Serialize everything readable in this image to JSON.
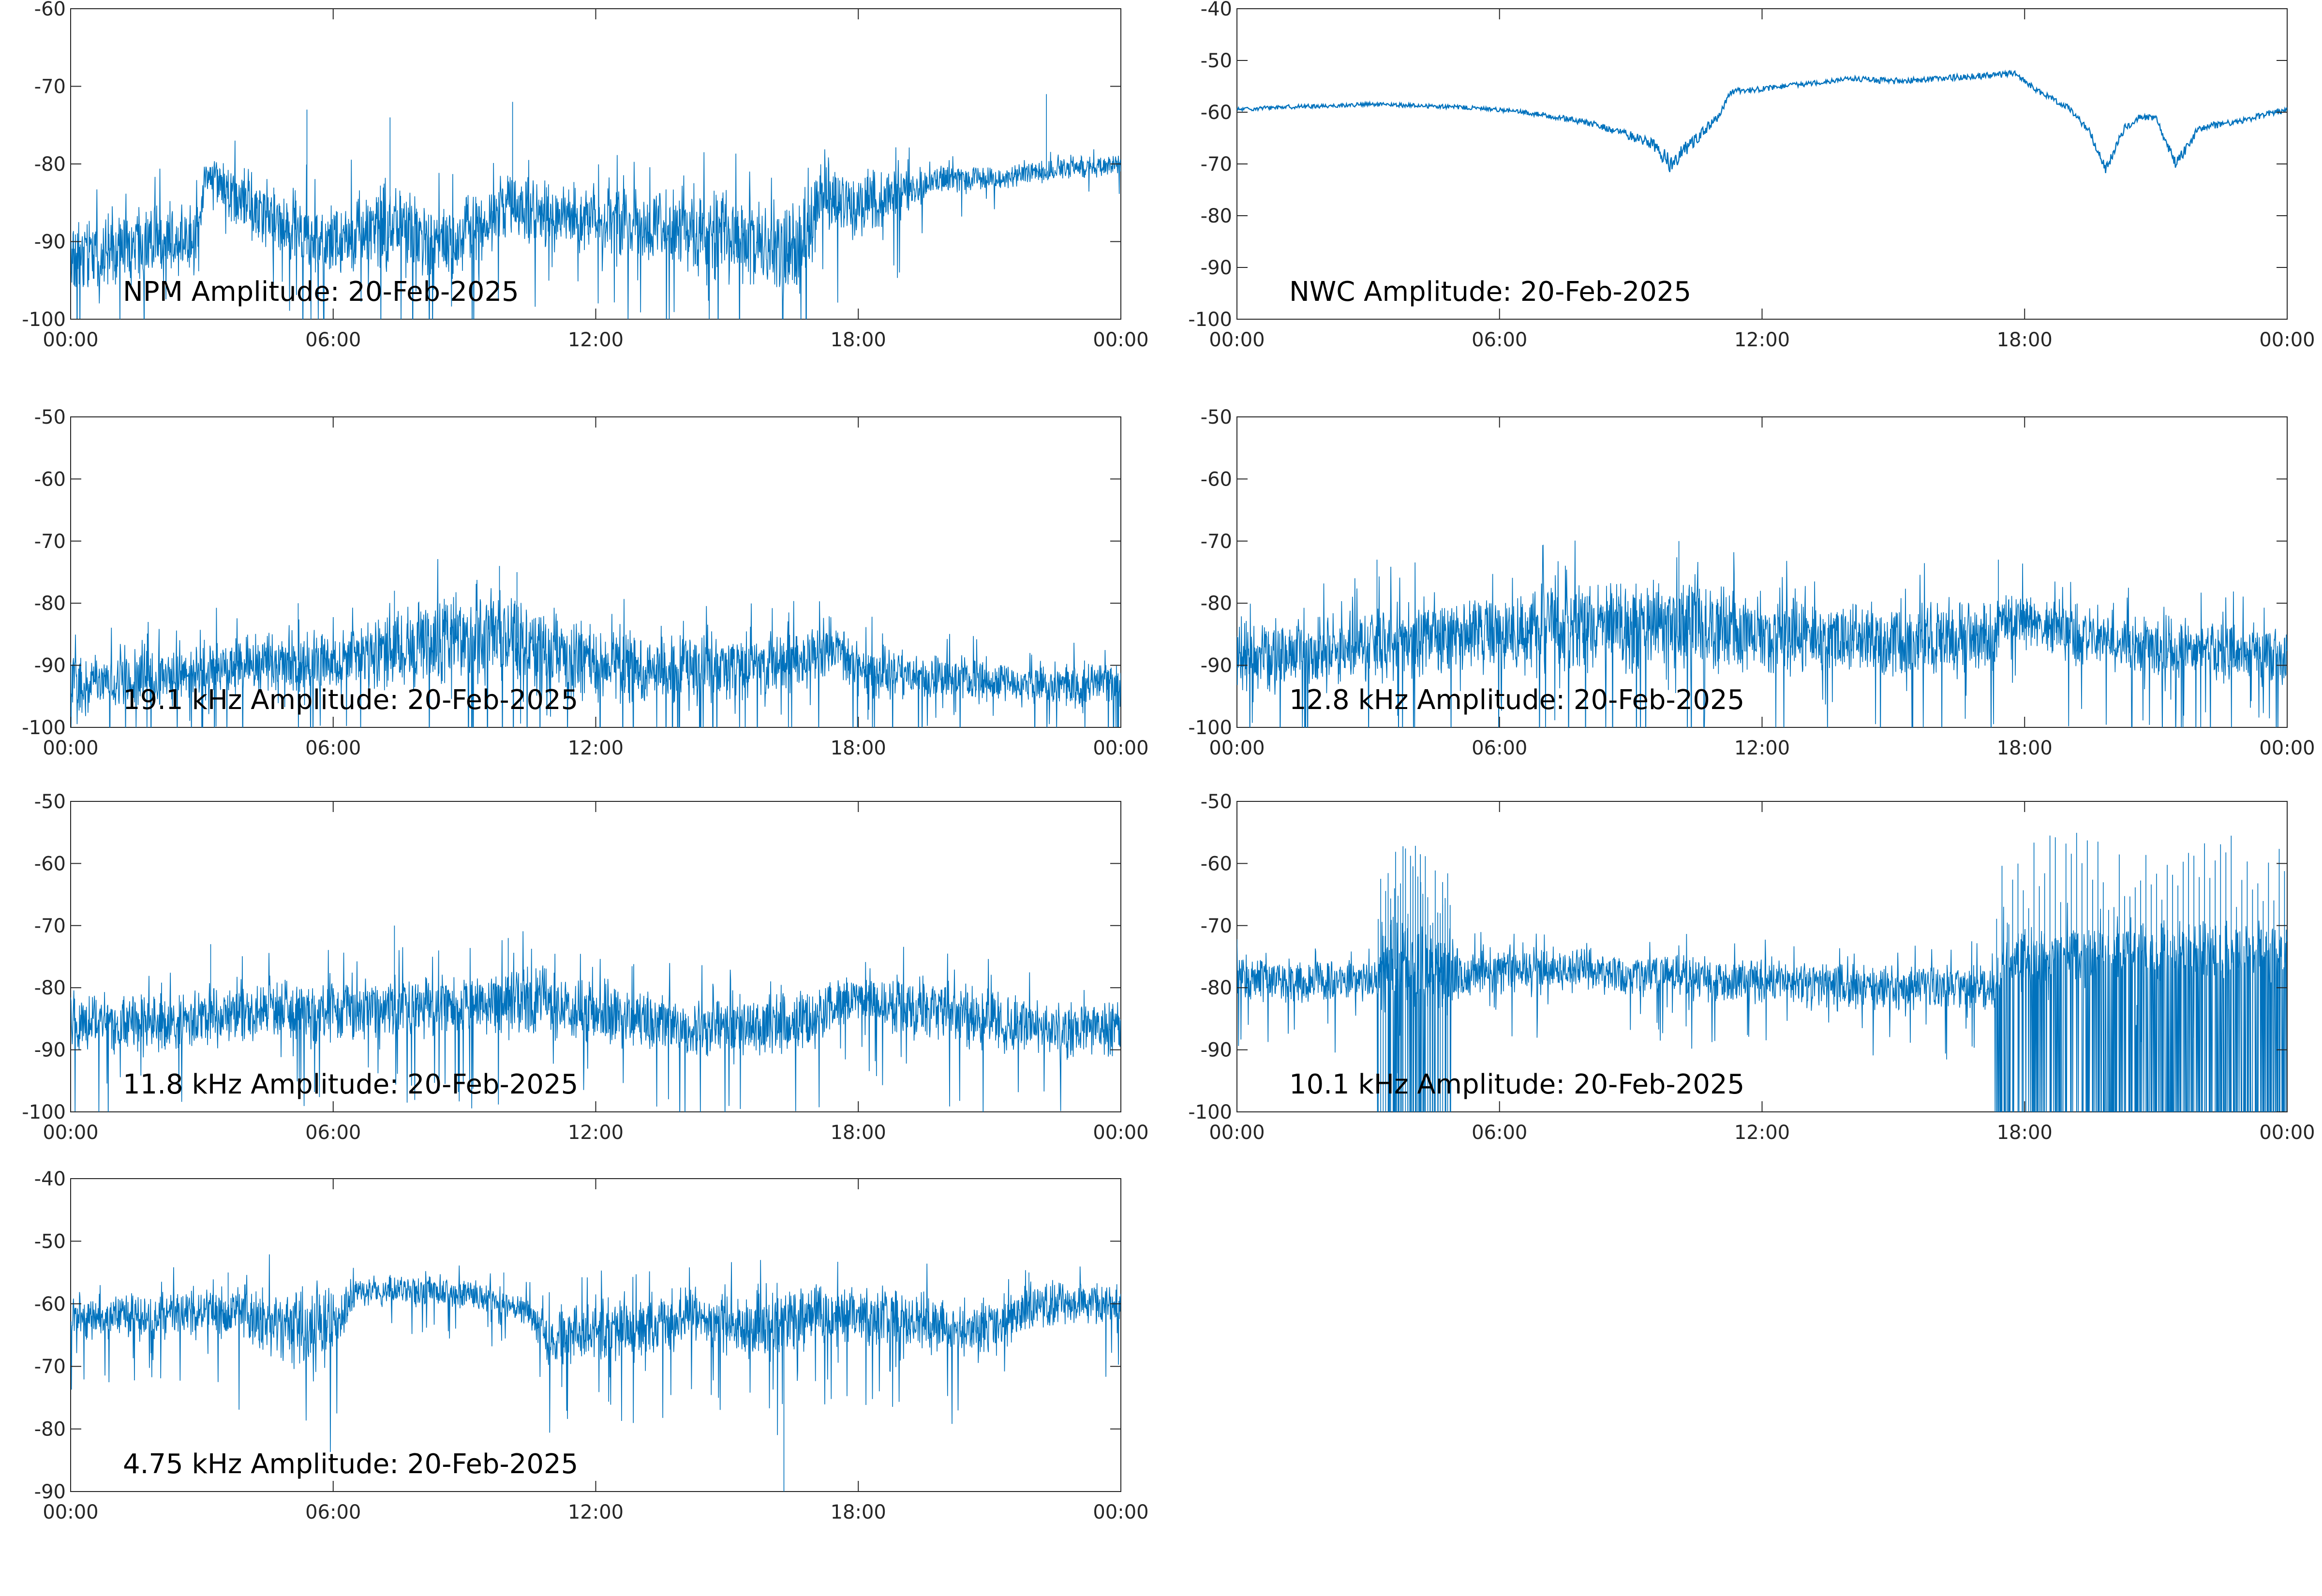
{
  "chart_data": [
    {
      "type": "line",
      "annotation": "NPM Amplitude: 20-Feb-2025",
      "x_ticks": [
        "00:00",
        "06:00",
        "12:00",
        "18:00",
        "00:00"
      ],
      "xlim": [
        "00:00",
        "24:00"
      ],
      "ylim": [
        -100,
        -60
      ],
      "y_ticks": [
        -60,
        -70,
        -80,
        -90,
        -100
      ],
      "color": "#0072BD",
      "grid": false,
      "noisy": true,
      "series": [
        {
          "x": [
            0,
            1,
            2,
            2.9,
            3.1,
            4,
            5,
            5.5,
            6.2,
            6.8,
            7.5,
            8.3,
            9,
            9.8,
            10.5,
            11.2,
            12,
            13,
            14,
            15,
            16,
            16.8,
            17.2,
            18,
            19,
            20,
            21,
            22,
            23,
            24
          ],
          "mid": [
            -92,
            -91,
            -90,
            -89,
            -81,
            -85,
            -88,
            -90,
            -90,
            -88,
            -88,
            -91,
            -89,
            -86,
            -86,
            -87,
            -87,
            -88,
            -89,
            -90,
            -91,
            -91,
            -83,
            -86,
            -84,
            -82,
            -82,
            -81,
            -80.5,
            -80
          ],
          "spread": [
            4,
            4,
            4,
            4,
            1.5,
            4,
            4,
            4,
            4,
            4,
            5,
            4,
            4,
            4,
            4,
            3.5,
            3.5,
            4,
            5,
            5,
            5,
            5,
            4,
            4,
            2.5,
            1.5,
            1.5,
            1.2,
            1.2,
            1.2
          ],
          "spikes": [
            [
              5.4,
              -73
            ],
            [
              7.3,
              -74
            ],
            [
              10.1,
              -72
            ],
            [
              22.3,
              -71
            ]
          ]
        }
      ]
    },
    {
      "type": "line",
      "annotation": "NWC Amplitude: 20-Feb-2025",
      "x_ticks": [
        "00:00",
        "06:00",
        "12:00",
        "18:00",
        "00:00"
      ],
      "xlim": [
        "00:00",
        "24:00"
      ],
      "ylim": [
        -100,
        -40
      ],
      "y_ticks": [
        -40,
        -50,
        -60,
        -70,
        -80,
        -90,
        -100
      ],
      "color": "#0072BD",
      "grid": false,
      "noisy": false,
      "series": [
        {
          "x": [
            0,
            1,
            2,
            3,
            4,
            5,
            6,
            7,
            8,
            8.8,
            9.5,
            9.9,
            10.5,
            11,
            11.3,
            12,
            13,
            14,
            15,
            16,
            17,
            17.8,
            18.3,
            19,
            19.5,
            19.85,
            20.3,
            20.6,
            21,
            21.45,
            22,
            23,
            24
          ],
          "mid": [
            -59.5,
            -59,
            -58.8,
            -58.5,
            -58.7,
            -59,
            -59.5,
            -60.5,
            -62,
            -64,
            -66,
            -70,
            -65,
            -61,
            -56,
            -55.5,
            -54.5,
            -53.5,
            -54,
            -53.5,
            -53,
            -52.5,
            -56,
            -59,
            -64,
            -71,
            -63,
            -61,
            -61,
            -70,
            -63,
            -61.5,
            -59.5
          ],
          "spread": [
            0.4,
            0.4,
            0.4,
            0.4,
            0.4,
            0.4,
            0.4,
            0.5,
            0.6,
            0.8,
            1.2,
            1.8,
            1.2,
            0.8,
            0.6,
            0.5,
            0.5,
            0.5,
            0.6,
            0.6,
            0.6,
            0.6,
            0.6,
            0.6,
            0.8,
            1.2,
            0.8,
            0.6,
            0.6,
            1.2,
            0.8,
            0.6,
            0.5
          ],
          "spikes": []
        }
      ]
    },
    {
      "type": "line",
      "annotation": "19.1 kHz Amplitude: 20-Feb-2025",
      "x_ticks": [
        "00:00",
        "06:00",
        "12:00",
        "18:00",
        "00:00"
      ],
      "xlim": [
        "00:00",
        "24:00"
      ],
      "ylim": [
        -100,
        -50
      ],
      "y_ticks": [
        -50,
        -60,
        -70,
        -80,
        -90,
        -100
      ],
      "color": "#0072BD",
      "grid": false,
      "noisy": true,
      "series": [
        {
          "x": [
            0,
            2,
            4,
            5,
            6,
            7,
            8,
            9,
            10,
            11,
            12,
            14,
            16,
            17,
            17.5,
            18,
            20,
            22,
            24
          ],
          "mid": [
            -93,
            -92,
            -90,
            -89,
            -90,
            -88,
            -87,
            -86,
            -85,
            -88,
            -90,
            -91,
            -90,
            -89,
            -87,
            -91,
            -92,
            -93,
            -93
          ],
          "spread": [
            4,
            4,
            4,
            4,
            4,
            5,
            6,
            6,
            6,
            6,
            5,
            5,
            4,
            4,
            3,
            4,
            3,
            3,
            3
          ],
          "spikes": [
            [
              9.8,
              -74
            ],
            [
              10.2,
              -75
            ],
            [
              7.4,
              -78
            ],
            [
              5.2,
              -80
            ]
          ]
        }
      ]
    },
    {
      "type": "line",
      "annotation": "12.8 kHz Amplitude: 20-Feb-2025",
      "x_ticks": [
        "00:00",
        "06:00",
        "12:00",
        "18:00",
        "00:00"
      ],
      "xlim": [
        "00:00",
        "24:00"
      ],
      "ylim": [
        -100,
        -50
      ],
      "y_ticks": [
        -50,
        -60,
        -70,
        -80,
        -90,
        -100
      ],
      "color": "#0072BD",
      "grid": false,
      "noisy": true,
      "series": [
        {
          "x": [
            0,
            2,
            3,
            4,
            5,
            6,
            7,
            8,
            9,
            10,
            11,
            12,
            14,
            16,
            17.3,
            17.5,
            19,
            21,
            23,
            24
          ],
          "mid": [
            -88,
            -88,
            -87,
            -86,
            -85,
            -85,
            -84,
            -84,
            -84,
            -83,
            -84,
            -85,
            -86,
            -86,
            -86,
            -82,
            -85,
            -87,
            -88,
            -89
          ],
          "spread": [
            5,
            5,
            5,
            5,
            5,
            5,
            6,
            6,
            6,
            6,
            6,
            5,
            5,
            5,
            5,
            4,
            4,
            4,
            4,
            4
          ],
          "spikes": [
            [
              10.1,
              -70
            ],
            [
              3.2,
              -73
            ],
            [
              17.4,
              -73
            ]
          ]
        }
      ]
    },
    {
      "type": "line",
      "annotation": "11.8 kHz Amplitude: 20-Feb-2025",
      "x_ticks": [
        "00:00",
        "06:00",
        "12:00",
        "18:00",
        "00:00"
      ],
      "xlim": [
        "00:00",
        "24:00"
      ],
      "ylim": [
        -100,
        -50
      ],
      "y_ticks": [
        -50,
        -60,
        -70,
        -80,
        -90,
        -100
      ],
      "color": "#0072BD",
      "grid": false,
      "noisy": true,
      "series": [
        {
          "x": [
            0,
            1,
            2,
            3,
            4,
            5,
            6,
            7,
            8,
            9,
            10,
            11,
            12,
            13,
            14,
            15,
            16,
            17,
            17.8,
            19,
            20,
            22,
            24
          ],
          "mid": [
            -85,
            -86,
            -86,
            -85,
            -84,
            -83,
            -84,
            -83,
            -83,
            -83,
            -82,
            -83,
            -84,
            -85,
            -86,
            -86,
            -86,
            -85,
            -82,
            -83,
            -84,
            -86,
            -87
          ],
          "spread": [
            4,
            4,
            4,
            4,
            4,
            4,
            4,
            4,
            4,
            4,
            5,
            5,
            4,
            4,
            4,
            4,
            4,
            4,
            3,
            4,
            4,
            4,
            4
          ],
          "spikes": [
            [
              7.4,
              -70
            ],
            [
              10,
              -72
            ],
            [
              3.2,
              -73
            ]
          ]
        }
      ]
    },
    {
      "type": "line",
      "annotation": "10.1 kHz Amplitude: 20-Feb-2025",
      "x_ticks": [
        "00:00",
        "06:00",
        "12:00",
        "18:00",
        "00:00"
      ],
      "xlim": [
        "00:00",
        "24:00"
      ],
      "ylim": [
        -100,
        -50
      ],
      "y_ticks": [
        -50,
        -60,
        -70,
        -80,
        -90,
        -100
      ],
      "color": "#0072BD",
      "grid": false,
      "noisy": true,
      "series": [
        {
          "x": [
            0,
            2,
            3.2,
            3.5,
            4.8,
            5,
            8,
            10,
            12,
            14,
            16,
            17.3,
            17.5,
            19,
            21,
            23,
            24
          ],
          "mid": [
            -78,
            -79,
            -79,
            -77,
            -77,
            -78,
            -77,
            -78,
            -79,
            -80,
            -80,
            -80,
            -76,
            -75,
            -74,
            -74,
            -74
          ],
          "spread": [
            3,
            3,
            3,
            6,
            6,
            3,
            3,
            3,
            3,
            3,
            3,
            3,
            4,
            4,
            4,
            4,
            4
          ],
          "spikes": [
            [
              3.6,
              -64
            ],
            [
              4.2,
              -63
            ],
            [
              4.7,
              -63
            ]
          ],
          "bursts": [
            [
              3.2,
              4.9,
              30
            ],
            [
              17.3,
              24,
              55
            ]
          ]
        }
      ]
    },
    {
      "type": "line",
      "annotation": "4.75 kHz Amplitude: 20-Feb-2025",
      "x_ticks": [
        "00:00",
        "06:00",
        "12:00",
        "18:00",
        "00:00"
      ],
      "xlim": [
        "00:00",
        "24:00"
      ],
      "ylim": [
        -90,
        -40
      ],
      "y_ticks": [
        -40,
        -50,
        -60,
        -70,
        -80,
        -90
      ],
      "color": "#0072BD",
      "grid": false,
      "noisy": true,
      "series": [
        {
          "x": [
            0,
            1,
            2,
            3,
            4,
            5,
            6,
            6.5,
            7.5,
            8.5,
            9.5,
            10.4,
            11,
            12,
            13,
            14,
            15,
            16,
            17,
            18,
            19,
            20,
            21,
            22,
            23,
            24
          ],
          "mid": [
            -62,
            -62,
            -62,
            -61,
            -62,
            -64,
            -64,
            -58,
            -58,
            -58,
            -59,
            -61,
            -66,
            -64,
            -64,
            -62,
            -63,
            -64,
            -62,
            -62,
            -62,
            -64,
            -64,
            -60,
            -60,
            -60
          ],
          "spread": [
            3,
            3,
            3,
            3,
            4,
            5,
            5,
            2,
            2,
            2,
            2,
            2,
            4,
            4,
            4,
            4,
            4,
            5,
            4,
            4,
            4,
            4,
            4,
            3,
            3,
            3
          ],
          "spikes": [
            [
              16.3,
              -90
            ],
            [
              3.6,
              -55
            ],
            [
              9.9,
              -55
            ],
            [
              21.9,
              -55
            ]
          ]
        }
      ]
    }
  ]
}
